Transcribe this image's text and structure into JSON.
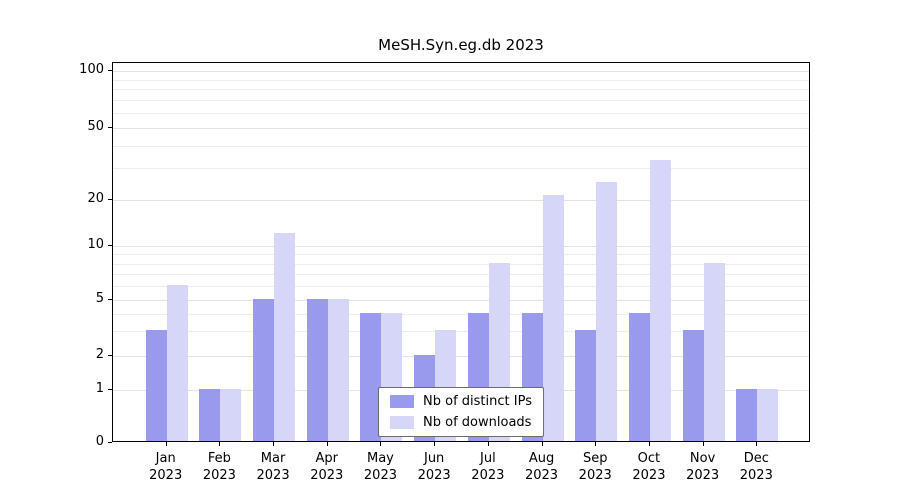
{
  "chart_data": {
    "type": "bar",
    "title": "MeSH.Syn.eg.db 2023",
    "xlabel": "",
    "ylabel": "",
    "categories": [
      "Jan 2023",
      "Feb 2023",
      "Mar 2023",
      "Apr 2023",
      "May 2023",
      "Jun 2023",
      "Jul 2023",
      "Aug 2023",
      "Sep 2023",
      "Oct 2023",
      "Nov 2023",
      "Dec 2023"
    ],
    "series": [
      {
        "name": "Nb of distinct IPs",
        "color": "#9999ee",
        "values": [
          3,
          1,
          5,
          5,
          4,
          2,
          4,
          4,
          3,
          4,
          3,
          1
        ]
      },
      {
        "name": "Nb of downloads",
        "color": "#d6d6f8",
        "values": [
          6,
          1,
          12,
          5,
          4,
          3,
          8,
          21,
          25,
          33,
          8,
          1
        ]
      }
    ],
    "yticks": [
      0,
      1,
      2,
      5,
      10,
      20,
      50,
      100
    ],
    "minor_gridlines": [
      3,
      4,
      6,
      7,
      8,
      9,
      30,
      40,
      60,
      70,
      80,
      90
    ],
    "scale": "symlog-like",
    "scale_anchors": [
      {
        "v": 0,
        "f": 1.0
      },
      {
        "v": 1,
        "f": 0.861
      },
      {
        "v": 2,
        "f": 0.771
      },
      {
        "v": 5,
        "f": 0.624
      },
      {
        "v": 10,
        "f": 0.482
      },
      {
        "v": 20,
        "f": 0.361
      },
      {
        "v": 50,
        "f": 0.171
      },
      {
        "v": 100,
        "f": 0.021
      }
    ],
    "legend_position": "lower center",
    "grid": true
  },
  "colors": {
    "background": "#ffffff",
    "axis": "#000000",
    "gridline": "#e3e3e3",
    "distinct_ips_bar": "#9999ee",
    "downloads_bar": "#d6d6f8"
  }
}
